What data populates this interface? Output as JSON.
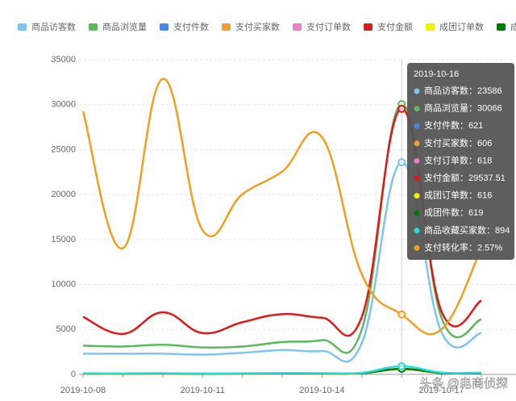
{
  "chart_data": {
    "type": "line",
    "categories": [
      "2019-10-08",
      null,
      null,
      "2019-10-11",
      null,
      null,
      "2019-10-14",
      null,
      null,
      "2019-10-17",
      null
    ],
    "ylim": [
      0,
      35000
    ],
    "yticks": [
      0,
      5000,
      10000,
      15000,
      20000,
      25000,
      30000,
      35000
    ],
    "y2lim": [
      0,
      13.5
    ],
    "grid": true,
    "smooth": true,
    "highlight_index": 8,
    "series": [
      {
        "name": "商品访客数",
        "color": "#7cc5ee",
        "values": [
          2300,
          2300,
          2300,
          2200,
          2400,
          2700,
          2600,
          3500,
          23586,
          4700,
          4600
        ]
      },
      {
        "name": "商品浏览量",
        "color": "#5cb85c",
        "values": [
          3200,
          3100,
          3300,
          3000,
          3100,
          3600,
          3800,
          5000,
          30066,
          6300,
          6100
        ]
      },
      {
        "name": "支付件数",
        "color": "#4a86e8",
        "values": [
          90,
          80,
          100,
          70,
          90,
          110,
          100,
          130,
          621,
          150,
          140
        ]
      },
      {
        "name": "支付买家数",
        "color": "#f0a030",
        "values": [
          85,
          75,
          95,
          65,
          85,
          105,
          95,
          125,
          606,
          145,
          135
        ]
      },
      {
        "name": "支付订单数",
        "color": "#e87fc8",
        "values": [
          88,
          78,
          98,
          68,
          88,
          108,
          98,
          128,
          618,
          148,
          138
        ]
      },
      {
        "name": "支付金额",
        "color": "#e01818",
        "values": [
          6400,
          4500,
          6900,
          4600,
          5800,
          6700,
          6300,
          6400,
          29537.51,
          7000,
          8200
        ]
      },
      {
        "name": "成团订单数",
        "color": "#f5f000",
        "values": [
          87,
          77,
          97,
          67,
          87,
          107,
          97,
          127,
          616,
          147,
          137
        ]
      },
      {
        "name": "成团件数",
        "color": "#007a00",
        "values": [
          89,
          79,
          99,
          69,
          89,
          109,
          99,
          129,
          619,
          149,
          139
        ]
      },
      {
        "name": "商品收藏买家数",
        "color": "#1ee0e0",
        "values": [
          120,
          110,
          130,
          100,
          120,
          150,
          140,
          180,
          894,
          200,
          190
        ]
      },
      {
        "name": "支付转化率",
        "color": "#f0a020",
        "axis": "y2",
        "values": [
          11.29,
          5.41,
          12.68,
          6.19,
          7.73,
          8.7,
          10.17,
          4.29,
          2.57,
          1.93,
          5.41
        ],
        "value_labels": [
          null,
          null,
          null,
          null,
          null,
          null,
          null,
          null,
          "2.57%",
          null,
          null
        ]
      }
    ],
    "tooltip": {
      "title": "2019-10-16",
      "separator": "："
    },
    "watermark": "头条 @电商侦探"
  }
}
